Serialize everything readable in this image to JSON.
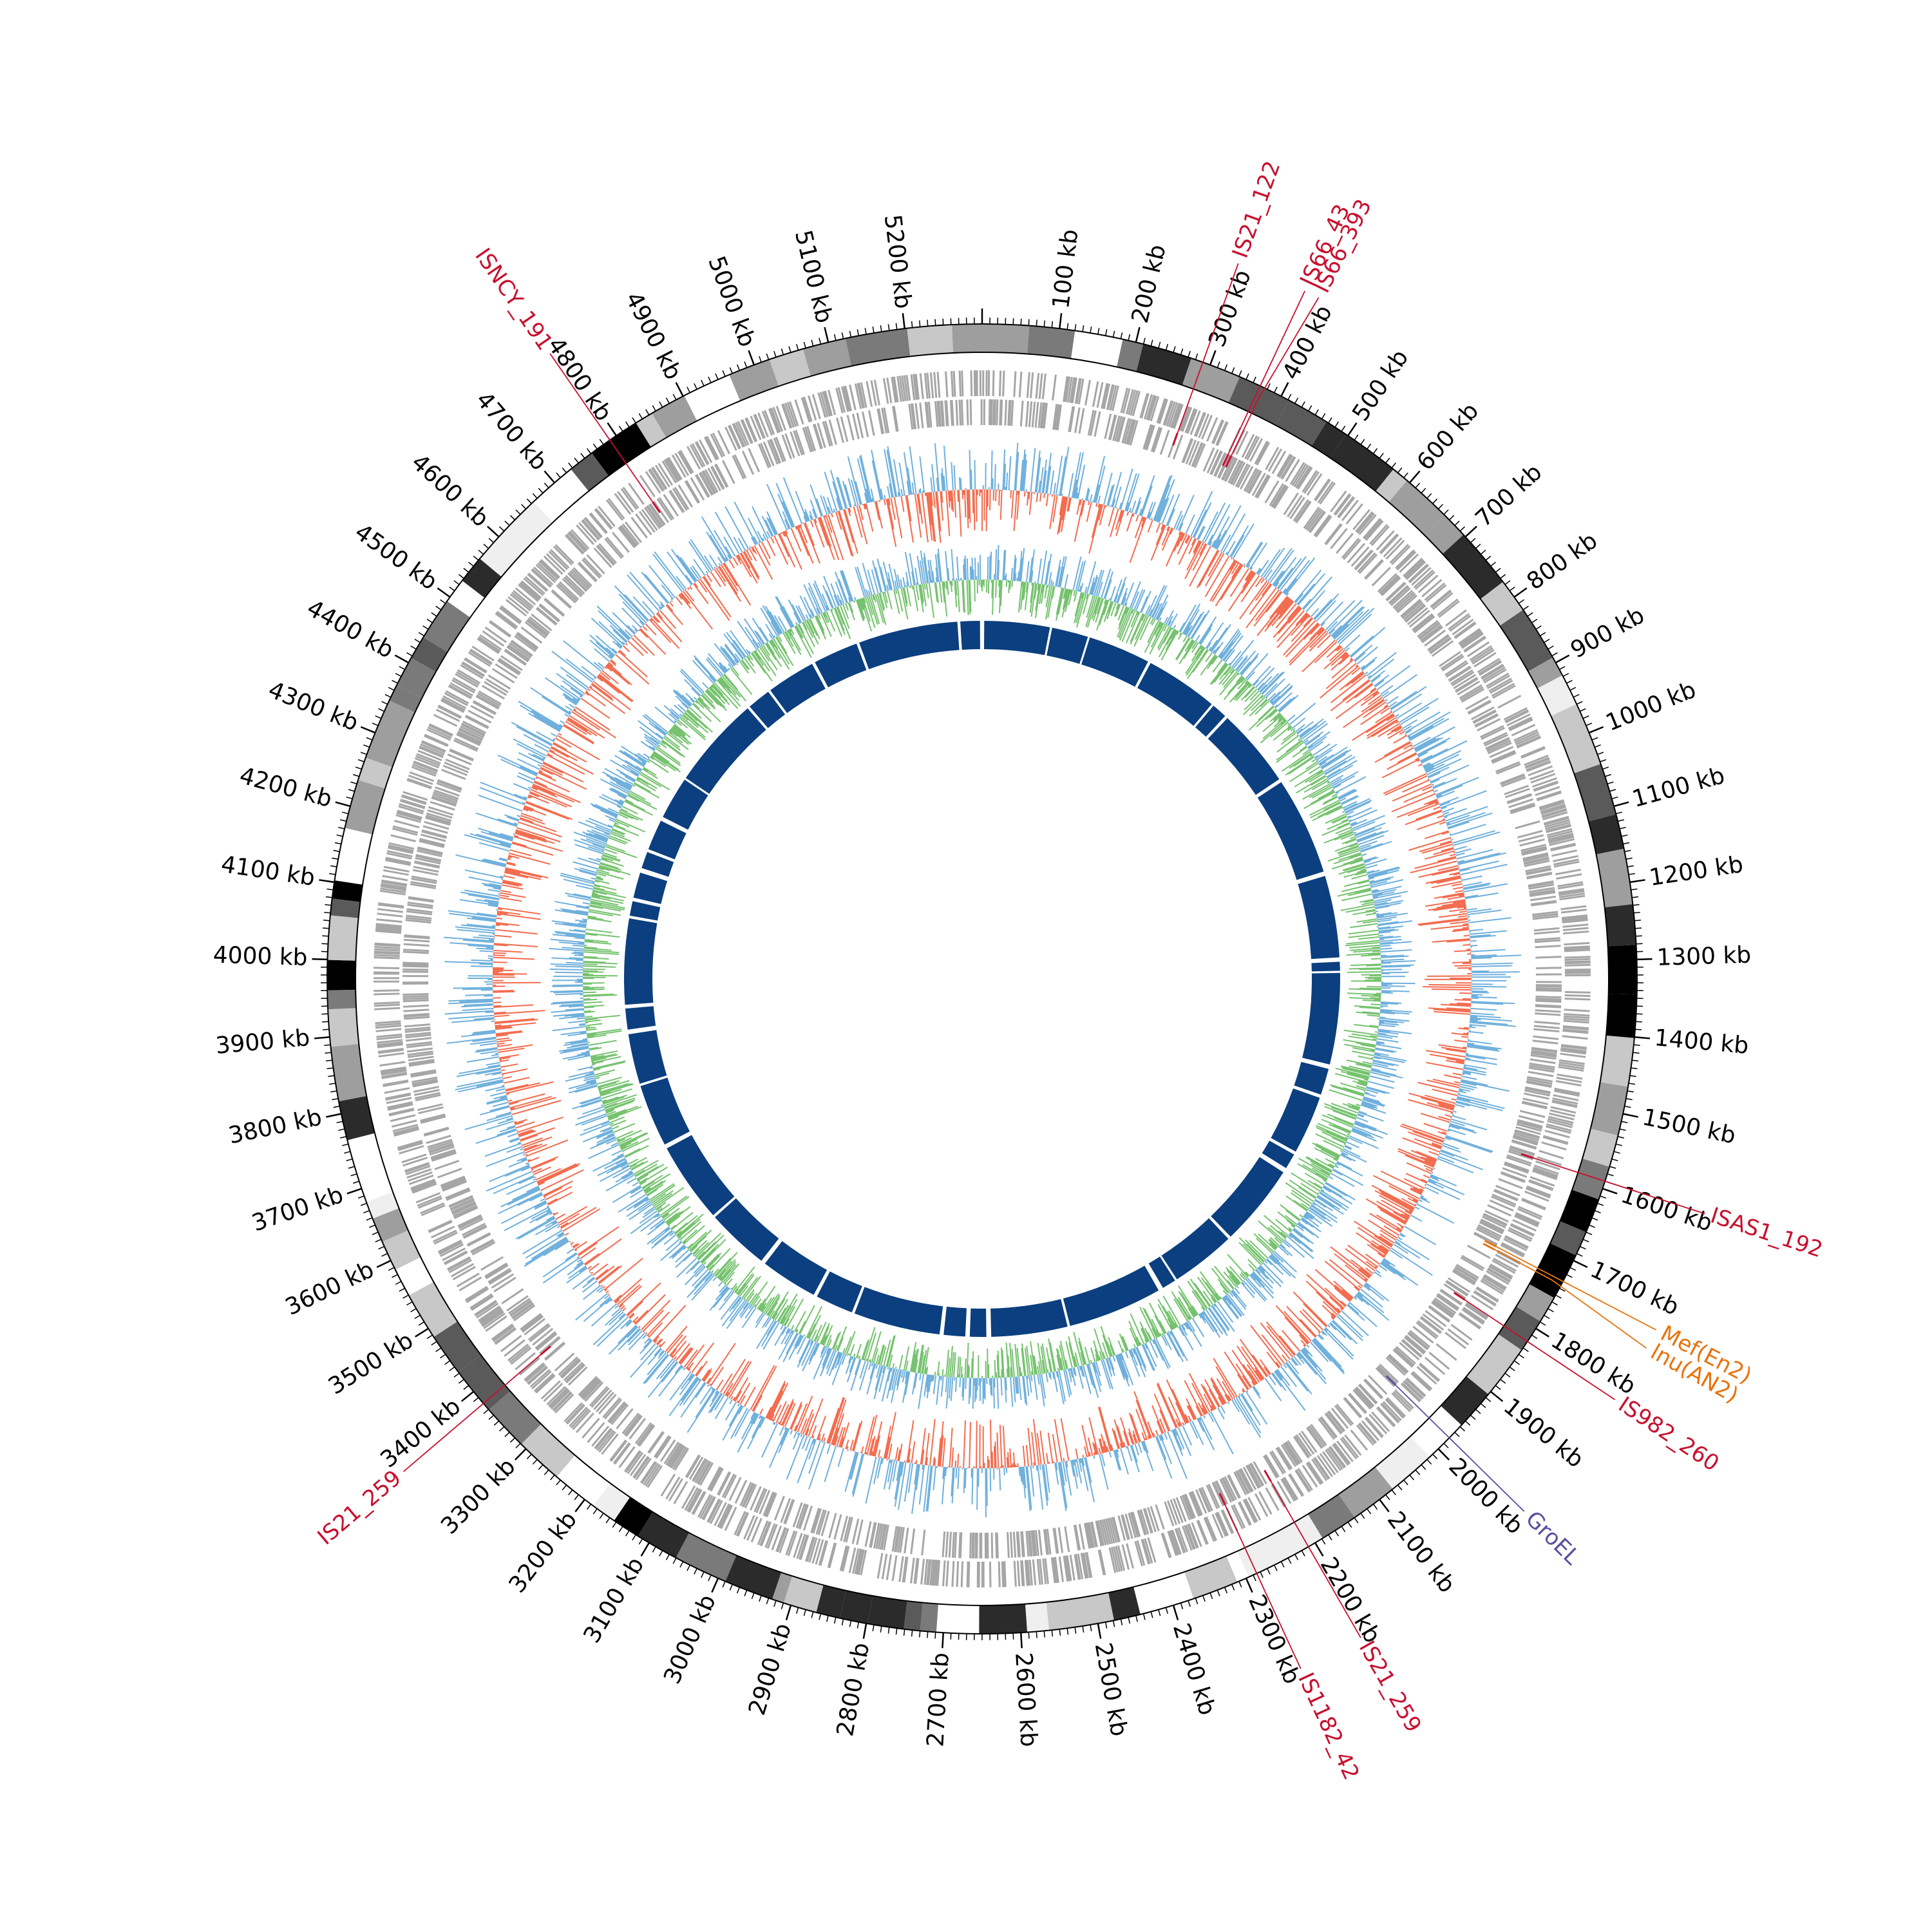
{
  "genome": {
    "length_kb": 5300,
    "tick_label_suffix": " kb",
    "tick_labels": [
      100,
      200,
      300,
      400,
      500,
      600,
      700,
      800,
      900,
      1000,
      1100,
      1200,
      1300,
      1400,
      1500,
      1600,
      1700,
      1800,
      1900,
      2000,
      2100,
      2200,
      2300,
      2400,
      2500,
      2600,
      2700,
      2800,
      2900,
      3000,
      3100,
      3200,
      3300,
      3400,
      3500,
      3600,
      3700,
      3800,
      3900,
      4000,
      4100,
      4200,
      4300,
      4400,
      4500,
      4600,
      4700,
      4800,
      4900,
      5000,
      5100,
      5200
    ]
  },
  "colors": {
    "is_element": "#c8102e",
    "resistance_gene": "#e8730c",
    "groel": "#5a4fa0",
    "gc_content_above": "#6fb0dc",
    "gc_content_below": "#f36c4f",
    "gc_skew": "#76c26f",
    "contig_blocks": "#0b3f7f",
    "genes": "#a6a6a6"
  },
  "annotations": [
    {
      "label": "ISNCY_191",
      "position_kb": 4790,
      "type": "is_element"
    },
    {
      "label": "IS21_122",
      "position_kb": 290,
      "type": "is_element"
    },
    {
      "label": "IS66_43",
      "position_kb": 370,
      "type": "is_element"
    },
    {
      "label": "IS66_393",
      "position_kb": 375,
      "type": "is_element"
    },
    {
      "label": "ISAS1_192",
      "position_kb": 1590,
      "type": "is_element"
    },
    {
      "label": "Mef(En2)",
      "position_kb": 1730,
      "type": "resistance_gene"
    },
    {
      "label": "lnu(AN2)",
      "position_kb": 1735,
      "type": "resistance_gene"
    },
    {
      "label": "IS982_260",
      "position_kb": 1820,
      "type": "is_element"
    },
    {
      "label": "GroEL",
      "position_kb": 1980,
      "type": "groel"
    },
    {
      "label": "IS21_259",
      "position_kb": 2210,
      "type": "is_element"
    },
    {
      "label": "IS1182_42",
      "position_kb": 2285,
      "type": "is_element"
    },
    {
      "label": "IS21_259",
      "position_kb": 3380,
      "type": "is_element"
    }
  ]
}
